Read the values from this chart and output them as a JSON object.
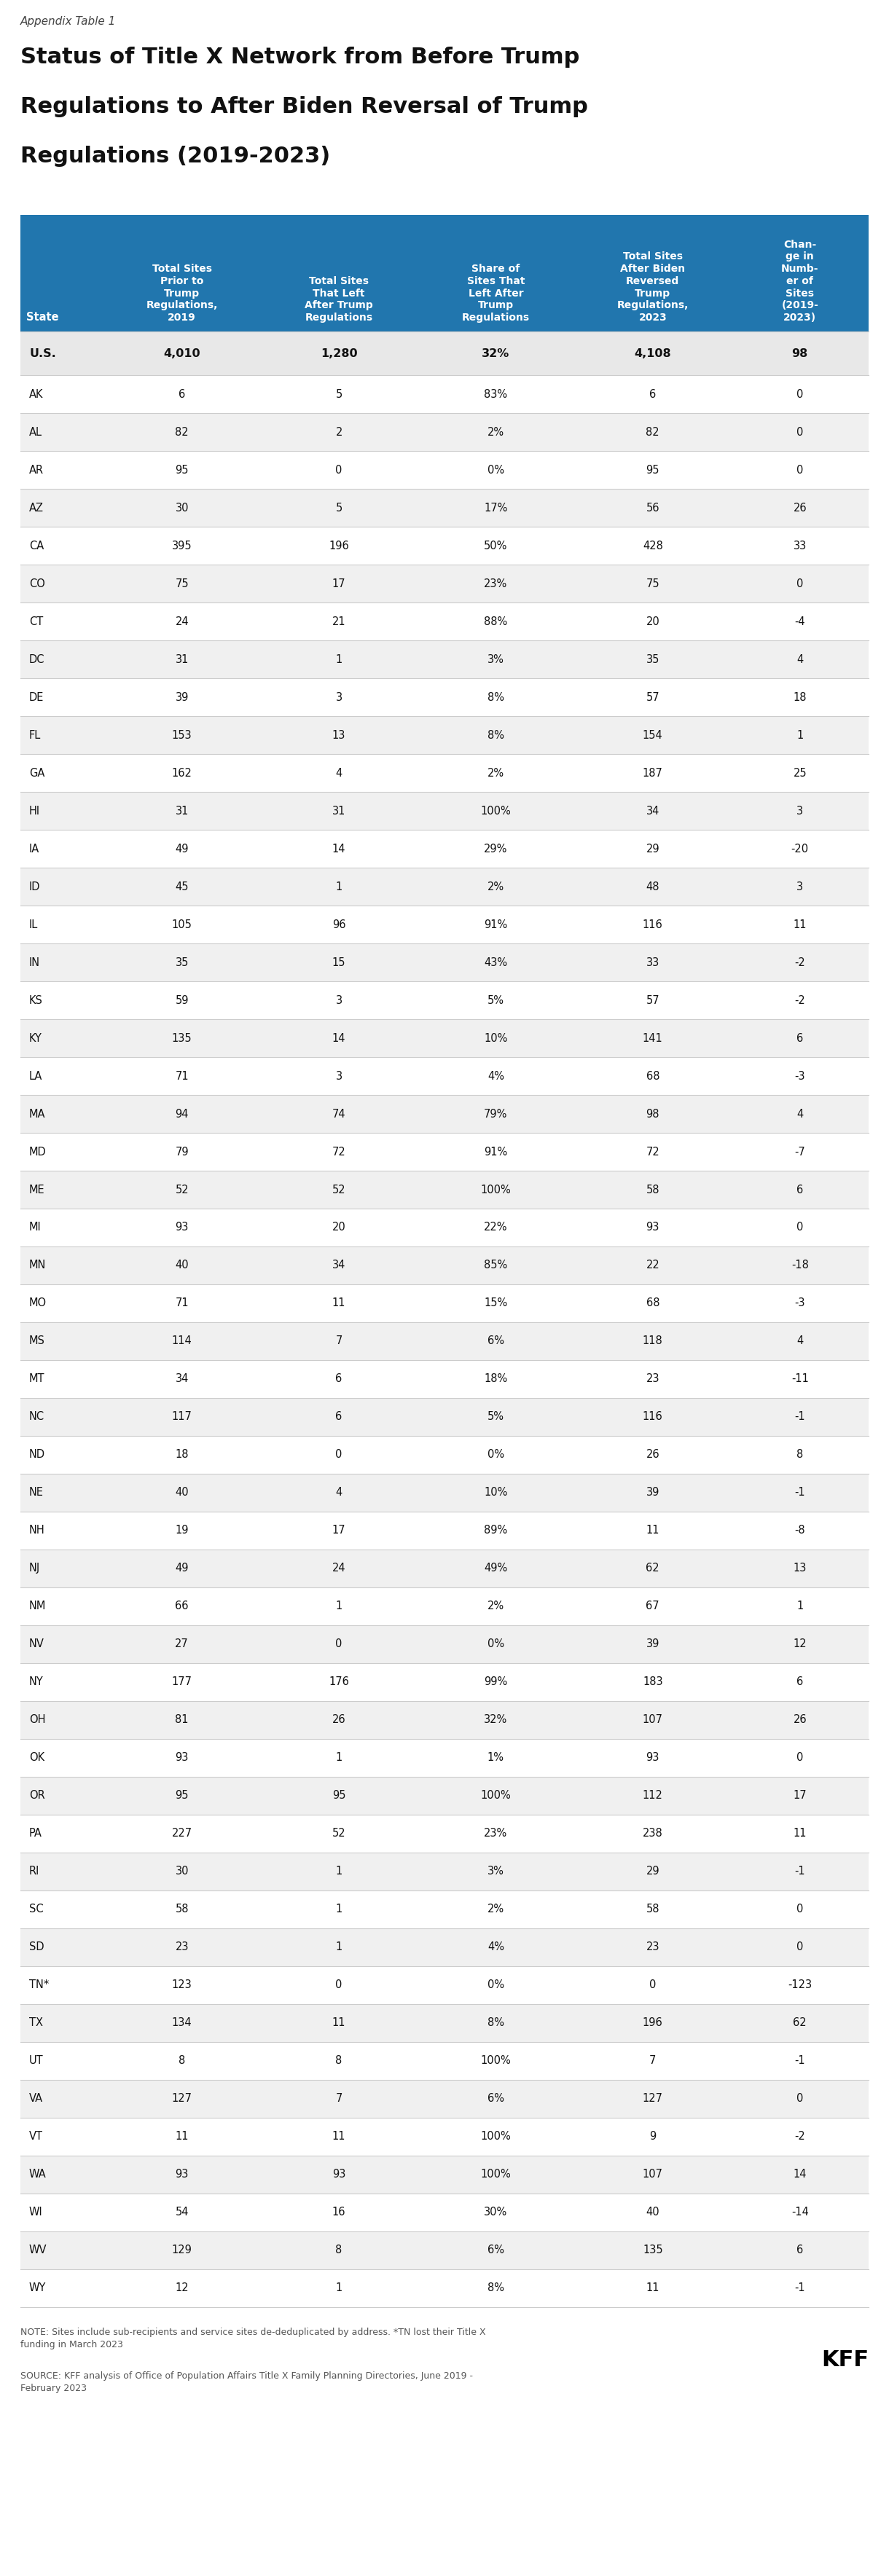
{
  "appendix_label": "Appendix Table 1",
  "title_line1": "Status of Title X Network from Before Trump",
  "title_line2": "Regulations to After Biden Reversal of Trump",
  "title_line3": "Regulations (2019-2023)",
  "col_header_lines": [
    "State",
    "Total Sites\nPrior to\nTrump\nRegulations,\n2019",
    "Total Sites\nThat Left\nAfter Trump\nRegulations",
    "Share of\nSites That\nLeft After\nTrump\nRegulations",
    "Total Sites\nAfter Biden\nReversed\nTrump\nRegulations,\n2023",
    "Chan-\nge in\nNumb-\ner of\nSites\n(2019-\n2023)"
  ],
  "rows": [
    [
      "U.S.",
      "4,010",
      "1,280",
      "32%",
      "4,108",
      "98"
    ],
    [
      "AK",
      "6",
      "5",
      "83%",
      "6",
      "0"
    ],
    [
      "AL",
      "82",
      "2",
      "2%",
      "82",
      "0"
    ],
    [
      "AR",
      "95",
      "0",
      "0%",
      "95",
      "0"
    ],
    [
      "AZ",
      "30",
      "5",
      "17%",
      "56",
      "26"
    ],
    [
      "CA",
      "395",
      "196",
      "50%",
      "428",
      "33"
    ],
    [
      "CO",
      "75",
      "17",
      "23%",
      "75",
      "0"
    ],
    [
      "CT",
      "24",
      "21",
      "88%",
      "20",
      "-4"
    ],
    [
      "DC",
      "31",
      "1",
      "3%",
      "35",
      "4"
    ],
    [
      "DE",
      "39",
      "3",
      "8%",
      "57",
      "18"
    ],
    [
      "FL",
      "153",
      "13",
      "8%",
      "154",
      "1"
    ],
    [
      "GA",
      "162",
      "4",
      "2%",
      "187",
      "25"
    ],
    [
      "HI",
      "31",
      "31",
      "100%",
      "34",
      "3"
    ],
    [
      "IA",
      "49",
      "14",
      "29%",
      "29",
      "-20"
    ],
    [
      "ID",
      "45",
      "1",
      "2%",
      "48",
      "3"
    ],
    [
      "IL",
      "105",
      "96",
      "91%",
      "116",
      "11"
    ],
    [
      "IN",
      "35",
      "15",
      "43%",
      "33",
      "-2"
    ],
    [
      "KS",
      "59",
      "3",
      "5%",
      "57",
      "-2"
    ],
    [
      "KY",
      "135",
      "14",
      "10%",
      "141",
      "6"
    ],
    [
      "LA",
      "71",
      "3",
      "4%",
      "68",
      "-3"
    ],
    [
      "MA",
      "94",
      "74",
      "79%",
      "98",
      "4"
    ],
    [
      "MD",
      "79",
      "72",
      "91%",
      "72",
      "-7"
    ],
    [
      "ME",
      "52",
      "52",
      "100%",
      "58",
      "6"
    ],
    [
      "MI",
      "93",
      "20",
      "22%",
      "93",
      "0"
    ],
    [
      "MN",
      "40",
      "34",
      "85%",
      "22",
      "-18"
    ],
    [
      "MO",
      "71",
      "11",
      "15%",
      "68",
      "-3"
    ],
    [
      "MS",
      "114",
      "7",
      "6%",
      "118",
      "4"
    ],
    [
      "MT",
      "34",
      "6",
      "18%",
      "23",
      "-11"
    ],
    [
      "NC",
      "117",
      "6",
      "5%",
      "116",
      "-1"
    ],
    [
      "ND",
      "18",
      "0",
      "0%",
      "26",
      "8"
    ],
    [
      "NE",
      "40",
      "4",
      "10%",
      "39",
      "-1"
    ],
    [
      "NH",
      "19",
      "17",
      "89%",
      "11",
      "-8"
    ],
    [
      "NJ",
      "49",
      "24",
      "49%",
      "62",
      "13"
    ],
    [
      "NM",
      "66",
      "1",
      "2%",
      "67",
      "1"
    ],
    [
      "NV",
      "27",
      "0",
      "0%",
      "39",
      "12"
    ],
    [
      "NY",
      "177",
      "176",
      "99%",
      "183",
      "6"
    ],
    [
      "OH",
      "81",
      "26",
      "32%",
      "107",
      "26"
    ],
    [
      "OK",
      "93",
      "1",
      "1%",
      "93",
      "0"
    ],
    [
      "OR",
      "95",
      "95",
      "100%",
      "112",
      "17"
    ],
    [
      "PA",
      "227",
      "52",
      "23%",
      "238",
      "11"
    ],
    [
      "RI",
      "30",
      "1",
      "3%",
      "29",
      "-1"
    ],
    [
      "SC",
      "58",
      "1",
      "2%",
      "58",
      "0"
    ],
    [
      "SD",
      "23",
      "1",
      "4%",
      "23",
      "0"
    ],
    [
      "TN*",
      "123",
      "0",
      "0%",
      "0",
      "-123"
    ],
    [
      "TX",
      "134",
      "11",
      "8%",
      "196",
      "62"
    ],
    [
      "UT",
      "8",
      "8",
      "100%",
      "7",
      "-1"
    ],
    [
      "VA",
      "127",
      "7",
      "6%",
      "127",
      "0"
    ],
    [
      "VT",
      "11",
      "11",
      "100%",
      "9",
      "-2"
    ],
    [
      "WA",
      "93",
      "93",
      "100%",
      "107",
      "14"
    ],
    [
      "WI",
      "54",
      "16",
      "30%",
      "40",
      "-14"
    ],
    [
      "WV",
      "129",
      "8",
      "6%",
      "135",
      "6"
    ],
    [
      "WY",
      "12",
      "1",
      "8%",
      "11",
      "-1"
    ]
  ],
  "footer_note": "NOTE: Sites include sub-recipients and service sites de-deduplicated by address. *TN lost their Title X\nfunding in March 2023",
  "source_note": "SOURCE: KFF analysis of Office of Population Affairs Title X Family Planning Directories, June 2019 -\nFebruary 2023",
  "header_bg": "#2176AE",
  "header_text": "#FFFFFF",
  "row_bg_light": "#E8E8E8",
  "row_bg_dark": "#F0F0F0",
  "row_bg_white": "#FFFFFF",
  "border_color": "#CCCCCC"
}
